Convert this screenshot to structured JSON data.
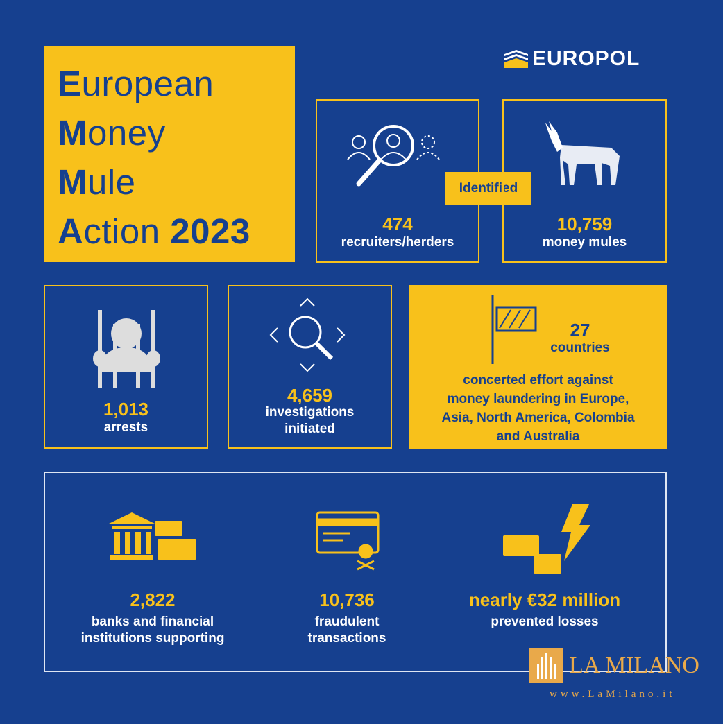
{
  "title": {
    "line1_initial": "E",
    "line1_rest": "uropean",
    "line2_initial": "M",
    "line2_rest": "oney",
    "line3_initial": "M",
    "line3_rest": "ule",
    "line4_initial": "A",
    "line4_rest": "ction ",
    "year": "2023"
  },
  "logo": {
    "text": "EUROPOL"
  },
  "identified_label": "Identified",
  "stats": {
    "recruiters": {
      "value": "474",
      "label": "recruiters/herders"
    },
    "mules": {
      "value": "10,759",
      "label": "money mules"
    },
    "arrests": {
      "value": "1,013",
      "label": "arrests"
    },
    "investigations": {
      "value": "4,659",
      "label_1": "investigations",
      "label_2": "initiated"
    },
    "countries": {
      "value": "27",
      "label": "countries",
      "desc_1": "concerted effort against",
      "desc_2": "money laundering in Europe,",
      "desc_3": "Asia, North America, Colombia",
      "desc_4": "and Australia"
    },
    "banks": {
      "value": "2,822",
      "label_1": "banks and financial",
      "label_2": "institutions supporting"
    },
    "transactions": {
      "value": "10,736",
      "label_1": "fraudulent",
      "label_2": "transactions"
    },
    "losses": {
      "value": "nearly €32 million",
      "label": "prevented losses"
    }
  },
  "watermark": {
    "name": "LA MILANO",
    "url": "www.LaMilano.it"
  },
  "colors": {
    "background": "#16408f",
    "accent": "#f8c11b"
  }
}
